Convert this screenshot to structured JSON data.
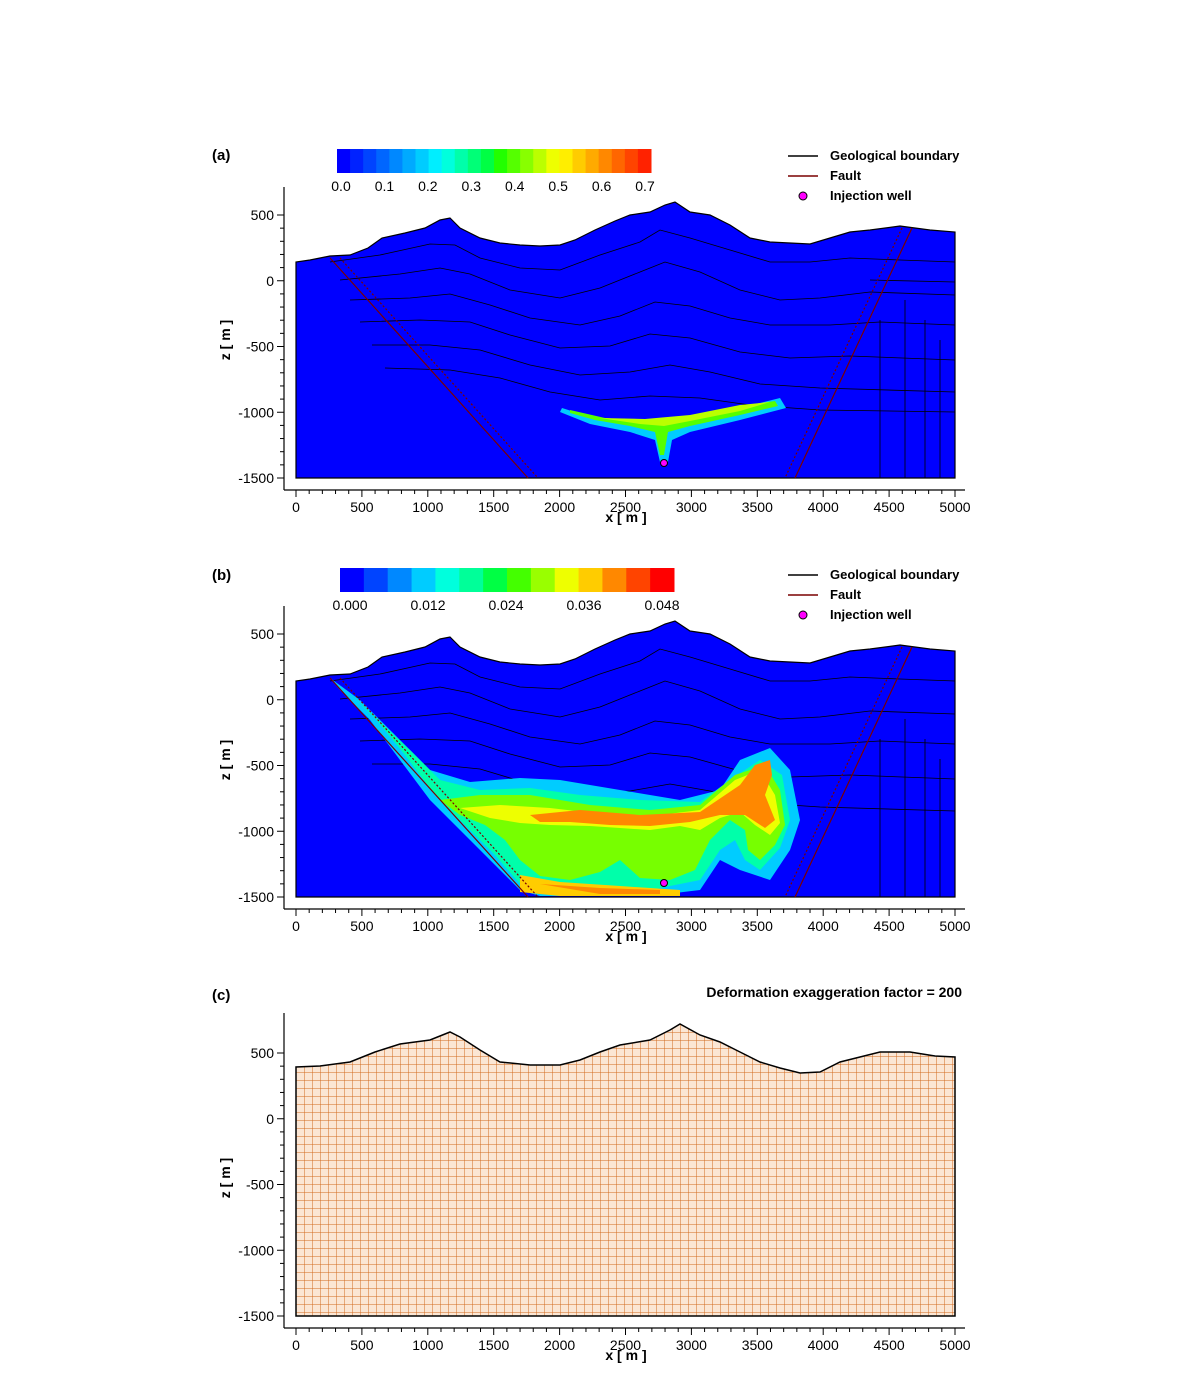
{
  "figure": {
    "panels": [
      {
        "label": "(a)",
        "colorbar": {
          "ticks": [
            "0.0",
            "0.1",
            "0.2",
            "0.3",
            "0.4",
            "0.5",
            "0.6",
            "0.7"
          ],
          "colors": [
            "#0000ff",
            "#0022ff",
            "#0044ff",
            "#0066ff",
            "#0088ff",
            "#00aaff",
            "#00ccff",
            "#00eeff",
            "#00ffdd",
            "#00ffaa",
            "#00ff77",
            "#00ff44",
            "#22ff00",
            "#55ff00",
            "#88ff00",
            "#bbff00",
            "#eeff00",
            "#ffee00",
            "#ffcc00",
            "#ffaa00",
            "#ff8800",
            "#ff6600",
            "#ff4400",
            "#ff2200"
          ]
        },
        "legend": [
          {
            "label": "Geological boundary",
            "kind": "line",
            "color": "#000000"
          },
          {
            "label": "Fault",
            "kind": "line",
            "color": "#7a0000"
          },
          {
            "label": "Injection well",
            "kind": "dot",
            "color": "#ff00ff"
          }
        ],
        "xlabel": "x [ m ]",
        "ylabel": "z [ m ]",
        "xticks": [
          "0",
          "500",
          "1000",
          "1500",
          "2000",
          "2500",
          "3000",
          "3500",
          "4000",
          "4500",
          "5000"
        ],
        "yticks": [
          "500",
          "0",
          "-500",
          "-1000",
          "-1500"
        ]
      },
      {
        "label": "(b)",
        "colorbar": {
          "ticks": [
            "0.000",
            "0.012",
            "0.024",
            "0.036",
            "0.048"
          ],
          "colors": [
            "#0000ff",
            "#0044ff",
            "#0088ff",
            "#00ccff",
            "#00ffdd",
            "#00ff99",
            "#00ff44",
            "#44ff00",
            "#99ff00",
            "#eeff00",
            "#ffcc00",
            "#ff8800",
            "#ff4400",
            "#ff0000"
          ]
        },
        "legend": [
          {
            "label": "Geological boundary",
            "kind": "line",
            "color": "#000000"
          },
          {
            "label": "Fault",
            "kind": "line",
            "color": "#7a0000"
          },
          {
            "label": "Injection well",
            "kind": "dot",
            "color": "#ff00ff"
          }
        ],
        "xlabel": "x [ m ]",
        "ylabel": "z [ m ]",
        "xticks": [
          "0",
          "500",
          "1000",
          "1500",
          "2000",
          "2500",
          "3000",
          "3500",
          "4000",
          "4500",
          "5000"
        ],
        "yticks": [
          "500",
          "0",
          "-500",
          "-1000",
          "-1500"
        ]
      },
      {
        "label": "(c)",
        "note": "Deformation exaggeration factor = 200",
        "xlabel": "x [ m ]",
        "ylabel": "z [ m ]",
        "xticks": [
          "0",
          "500",
          "1000",
          "1500",
          "2000",
          "2500",
          "3000",
          "3500",
          "4000",
          "4500",
          "5000"
        ],
        "yticks": [
          "500",
          "0",
          "-500",
          "-1000",
          "-1500"
        ]
      }
    ],
    "colors": {
      "domain_fill": "#0000ff",
      "boundary": "#000000",
      "fault": "#7a0000",
      "well": "#ff00ff",
      "mesh": "#d2691e",
      "mesh_bg": "#fbe6d4"
    }
  }
}
